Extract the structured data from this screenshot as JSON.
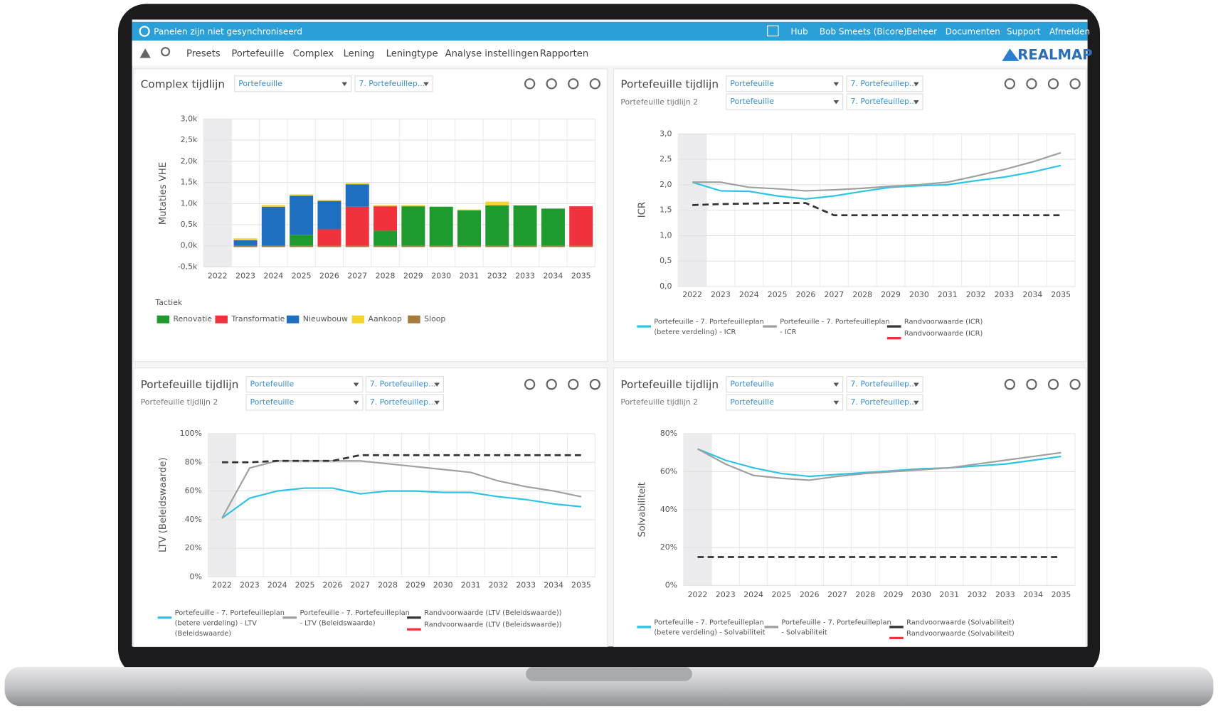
{
  "topbar": {
    "message": "Panelen zijn niet gesynchroniseerd",
    "links": [
      "Hub",
      "Bob Smeets (Bicore)",
      "Beheer",
      "Documenten",
      "Support",
      "Afmelden"
    ]
  },
  "nav": {
    "items": [
      "Presets",
      "Portefeuille",
      "Complex",
      "Lening",
      "Leningtype",
      "Analyse instellingen",
      "Rapporten"
    ],
    "logo": "REALMAP"
  },
  "panels": [
    {
      "title": "Complex tijdlijn",
      "dropdowns": [
        [
          "Portefeuille",
          "7. Portefeuillep..."
        ]
      ],
      "chart": {
        "type": "stacked-bar",
        "ylabel": "Mutaties VHE",
        "legend_title": "Tactiek",
        "categories": [
          "2022",
          "2023",
          "2024",
          "2025",
          "2026",
          "2027",
          "2028",
          "2029",
          "2030",
          "2031",
          "2032",
          "2033",
          "2034",
          "2035"
        ],
        "ylim": [
          -500,
          3000
        ],
        "yticks": [
          {
            "value": -500,
            "label": "-0,5k"
          },
          {
            "value": 0,
            "label": "0,0k"
          },
          {
            "value": 500,
            "label": "0,5k"
          },
          {
            "value": 1000,
            "label": "1,0k"
          },
          {
            "value": 1500,
            "label": "1,5k"
          },
          {
            "value": 2000,
            "label": "2,0k"
          },
          {
            "value": 2500,
            "label": "2,5k"
          },
          {
            "value": 3000,
            "label": "3,0k"
          }
        ],
        "series": [
          {
            "name": "Renovatie",
            "color": "#1e9a2e",
            "values": [
              0,
              0,
              0,
              260,
              0,
              0,
              360,
              935,
              925,
              840,
              955,
              955,
              880,
              0
            ]
          },
          {
            "name": "Transformatie",
            "color": "#f0323c",
            "values": [
              0,
              0,
              0,
              0,
              390,
              925,
              575,
              0,
              0,
              0,
              0,
              0,
              0,
              935
            ]
          },
          {
            "name": "Nieuwbouw",
            "color": "#1f6fc0",
            "values": [
              0,
              130,
              925,
              925,
              670,
              530,
              0,
              0,
              0,
              0,
              0,
              0,
              0,
              0
            ]
          },
          {
            "name": "Aankoop",
            "color": "#f6d32d",
            "values": [
              0,
              46,
              40,
              30,
              30,
              30,
              30,
              30,
              0,
              20,
              90,
              0,
              0,
              0
            ]
          },
          {
            "name": "Sloop",
            "color": "#a67c3c",
            "values": [
              0,
              -30,
              -30,
              -30,
              -30,
              -30,
              -30,
              -30,
              -30,
              -30,
              -30,
              -30,
              -30,
              -30
            ]
          }
        ]
      }
    },
    {
      "title": "Portefeuille tijdlijn",
      "subtitle": "Portefeuille tijdlijn 2",
      "dropdowns": [
        [
          "Portefeuille",
          "7. Portefeuillep..."
        ],
        [
          "Portefeuille",
          "7. Portefeuillep..."
        ]
      ],
      "chart": {
        "type": "line",
        "ylabel": "ICR",
        "categories": [
          "2022",
          "2023",
          "2024",
          "2025",
          "2026",
          "2027",
          "2028",
          "2029",
          "2030",
          "2031",
          "2032",
          "2033",
          "2034",
          "2035"
        ],
        "ylim": [
          0,
          3
        ],
        "yticks": [
          {
            "value": 0,
            "label": "0,0"
          },
          {
            "value": 0.5,
            "label": "0,5"
          },
          {
            "value": 1,
            "label": "1,0"
          },
          {
            "value": 1.5,
            "label": "1,5"
          },
          {
            "value": 2,
            "label": "2,0"
          },
          {
            "value": 2.5,
            "label": "2,5"
          },
          {
            "value": 3,
            "label": "3,0"
          }
        ],
        "series": [
          {
            "name": [
              "Portefeuille - 7. Portefeuilleplan",
              "(betere verdeling) - ICR"
            ],
            "color": "#2ec4e6",
            "values": [
              2.05,
              1.88,
              1.87,
              1.78,
              1.72,
              1.78,
              1.87,
              1.95,
              1.98,
              2.0,
              2.08,
              2.15,
              2.25,
              2.38
            ]
          },
          {
            "name": [
              "Portefeuille - 7. Portefeuilleplan",
              "- ICR"
            ],
            "color": "#a0a0a0",
            "values": [
              2.05,
              2.05,
              1.95,
              1.92,
              1.88,
              1.9,
              1.93,
              1.97,
              2.0,
              2.05,
              2.17,
              2.3,
              2.45,
              2.63
            ]
          },
          {
            "name": [
              "Randvoorwaarde (ICR)"
            ],
            "color": "#333333",
            "dashed": true,
            "values": [
              1.6,
              1.62,
              1.63,
              1.64,
              1.64,
              1.4,
              1.4,
              1.4,
              1.4,
              1.4,
              1.4,
              1.4,
              1.4,
              1.4
            ]
          },
          {
            "name": [
              "Randvoorwaarde (ICR)"
            ],
            "color": "#f0323c",
            "values": [
              null,
              null,
              null,
              null,
              null,
              null,
              null,
              null,
              null,
              null,
              null,
              null,
              null,
              null
            ]
          }
        ]
      }
    },
    {
      "title": "Portefeuille tijdlijn",
      "subtitle": "Portefeuille tijdlijn 2",
      "dropdowns": [
        [
          "Portefeuille",
          "7. Portefeuillep..."
        ],
        [
          "Portefeuille",
          "7. Portefeuillep..."
        ]
      ],
      "chart": {
        "type": "line",
        "ylabel": "LTV (Beleidswaarde)",
        "categories": [
          "2022",
          "2023",
          "2024",
          "2025",
          "2026",
          "2027",
          "2028",
          "2029",
          "2030",
          "2031",
          "2032",
          "2033",
          "2034",
          "2035"
        ],
        "ylim": [
          0,
          100
        ],
        "yticks": [
          {
            "value": 0,
            "label": "0%"
          },
          {
            "value": 20,
            "label": "20%"
          },
          {
            "value": 40,
            "label": "40%"
          },
          {
            "value": 60,
            "label": "60%"
          },
          {
            "value": 80,
            "label": "80%"
          },
          {
            "value": 100,
            "label": "100%"
          }
        ],
        "series": [
          {
            "name": [
              "Portefeuille - 7. Portefeuilleplan",
              "(betere verdeling) - LTV",
              "(Beleidswaarde)"
            ],
            "color": "#2ec4e6",
            "values": [
              41,
              55,
              60,
              62,
              62,
              58,
              60,
              60,
              59,
              59,
              56,
              54,
              51,
              49
            ]
          },
          {
            "name": [
              "Portefeuille - 7. Portefeuilleplan",
              "- LTV (Beleidswaarde)"
            ],
            "color": "#a0a0a0",
            "values": [
              41,
              76,
              81,
              81,
              81,
              81,
              79,
              77,
              75,
              73,
              67,
              63,
              60,
              56
            ]
          },
          {
            "name": [
              "Randvoorwaarde (LTV (Beleidswaarde))"
            ],
            "color": "#333333",
            "dashed": true,
            "values": [
              80,
              80,
              81,
              81,
              81,
              85,
              85,
              85,
              85,
              85,
              85,
              85,
              85,
              85
            ]
          },
          {
            "name": [
              "Randvoorwaarde (LTV (Beleidswaarde))"
            ],
            "color": "#f0323c",
            "values": [
              null,
              null,
              null,
              null,
              null,
              null,
              null,
              null,
              null,
              null,
              null,
              null,
              null,
              null
            ]
          }
        ]
      }
    },
    {
      "title": "Portefeuille tijdlijn",
      "subtitle": "Portefeuille tijdlijn 2",
      "dropdowns": [
        [
          "Portefeuille",
          "7. Portefeuillep..."
        ],
        [
          "Portefeuille",
          "7. Portefeuillep..."
        ]
      ],
      "chart": {
        "type": "line",
        "ylabel": "Solvabiliteit",
        "categories": [
          "2022",
          "2023",
          "2024",
          "2025",
          "2026",
          "2027",
          "2028",
          "2029",
          "2030",
          "2031",
          "2032",
          "2033",
          "2034",
          "2035"
        ],
        "ylim": [
          0,
          80
        ],
        "yticks": [
          {
            "value": 0,
            "label": "0%"
          },
          {
            "value": 20,
            "label": "20%"
          },
          {
            "value": 40,
            "label": "40%"
          },
          {
            "value": 60,
            "label": "60%"
          },
          {
            "value": 80,
            "label": "80%"
          }
        ],
        "series": [
          {
            "name": [
              "Portefeuille - 7. Portefeuilleplan",
              "(betere verdeling) - Solvabiliteit"
            ],
            "color": "#2ec4e6",
            "values": [
              72,
              66,
              62,
              59,
              57.5,
              58.5,
              59.5,
              60.5,
              61.5,
              62,
              63,
              64,
              66,
              68
            ]
          },
          {
            "name": [
              "Portefeuille - 7. Portefeuilleplan",
              "- Solvabiliteit"
            ],
            "color": "#a0a0a0",
            "values": [
              72,
              64,
              58,
              56.5,
              55.5,
              57.5,
              59,
              60,
              61,
              62,
              64,
              66,
              68,
              70
            ]
          },
          {
            "name": [
              "Randvoorwaarde (Solvabiliteit)"
            ],
            "color": "#333333",
            "dashed": true,
            "values": [
              15,
              15,
              15,
              15,
              15,
              15,
              15,
              15,
              15,
              15,
              15,
              15,
              15,
              15
            ]
          },
          {
            "name": [
              "Randvoorwaarde (Solvabiliteit)"
            ],
            "color": "#f0323c",
            "values": [
              null,
              null,
              null,
              null,
              null,
              null,
              null,
              null,
              null,
              null,
              null,
              null,
              null,
              null
            ]
          }
        ]
      }
    }
  ]
}
